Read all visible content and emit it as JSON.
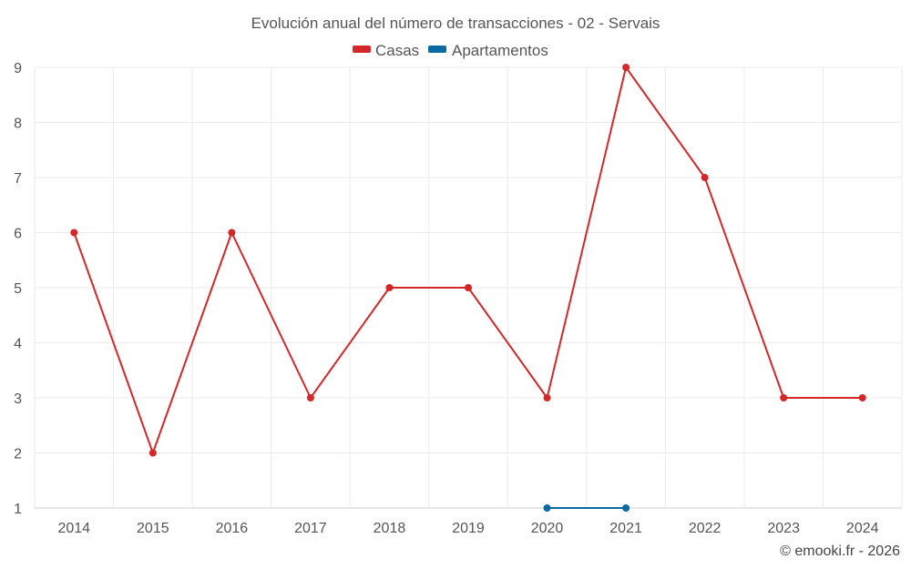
{
  "chart_data": {
    "type": "line",
    "title": "Evolución anual del número de transacciones - 02 - Servais",
    "categories": [
      "2014",
      "2015",
      "2016",
      "2017",
      "2018",
      "2019",
      "2020",
      "2021",
      "2022",
      "2023",
      "2024"
    ],
    "series": [
      {
        "name": "Casas",
        "color": "#d62728",
        "values": [
          6,
          2,
          6,
          3,
          5,
          5,
          3,
          9,
          7,
          3,
          3
        ]
      },
      {
        "name": "Apartamentos",
        "color": "#0a6aa1",
        "values": [
          null,
          null,
          null,
          null,
          null,
          null,
          1,
          1,
          null,
          null,
          null
        ]
      }
    ],
    "yticks": [
      "1",
      "2",
      "3",
      "4",
      "5",
      "6",
      "7",
      "8",
      "9"
    ],
    "ylim": [
      1,
      9
    ],
    "grid": true,
    "legend_position": "top-center",
    "xlabel": "",
    "ylabel": ""
  },
  "credit": "© emooki.fr - 2026"
}
